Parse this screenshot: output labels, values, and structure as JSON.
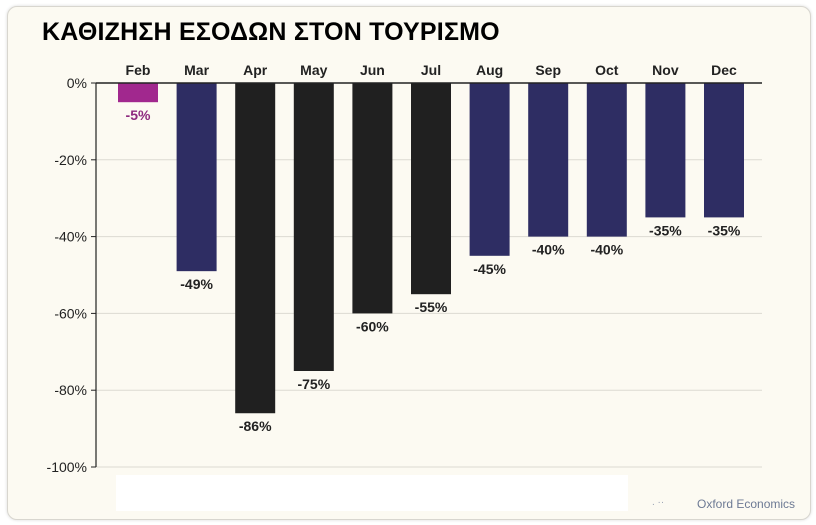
{
  "chart_data": {
    "type": "bar",
    "title": "ΚΑΘΙΖΗΣΗ ΕΣΟΔΩΝ ΣΤΟΝ ΤΟΥΡΙΣΜΟ",
    "categories": [
      "Feb",
      "Mar",
      "Apr",
      "May",
      "Jun",
      "Jul",
      "Aug",
      "Sep",
      "Oct",
      "Nov",
      "Dec"
    ],
    "values": [
      -5,
      -49,
      -86,
      -75,
      -60,
      -55,
      -45,
      -40,
      -40,
      -35,
      -35
    ],
    "value_labels": [
      "-5%",
      "-49%",
      "-86%",
      "-75%",
      "-60%",
      "-55%",
      "-45%",
      "-40%",
      "-40%",
      "-35%",
      "-35%"
    ],
    "bar_colors": [
      "#a1288e",
      "#2e2d63",
      "#202020",
      "#202020",
      "#202020",
      "#202020",
      "#2e2d63",
      "#2e2d63",
      "#2e2d63",
      "#2e2d63",
      "#2e2d63"
    ],
    "label_colors": [
      "#8e2a7f",
      "#222222",
      "#222222",
      "#222222",
      "#222222",
      "#222222",
      "#222222",
      "#222222",
      "#222222",
      "#222222",
      "#222222"
    ],
    "ylim": [
      -100,
      0
    ],
    "yticks": [
      0,
      -20,
      -40,
      -60,
      -80,
      -100
    ],
    "ytick_labels": [
      "0%",
      "-20%",
      "-40%",
      "-60%",
      "-80%",
      "-100%"
    ],
    "category_axis_position": "top",
    "grid": true,
    "xlabel": "",
    "ylabel": ""
  },
  "footer": {
    "dots": ". ··",
    "source": "Oxford Economics"
  }
}
